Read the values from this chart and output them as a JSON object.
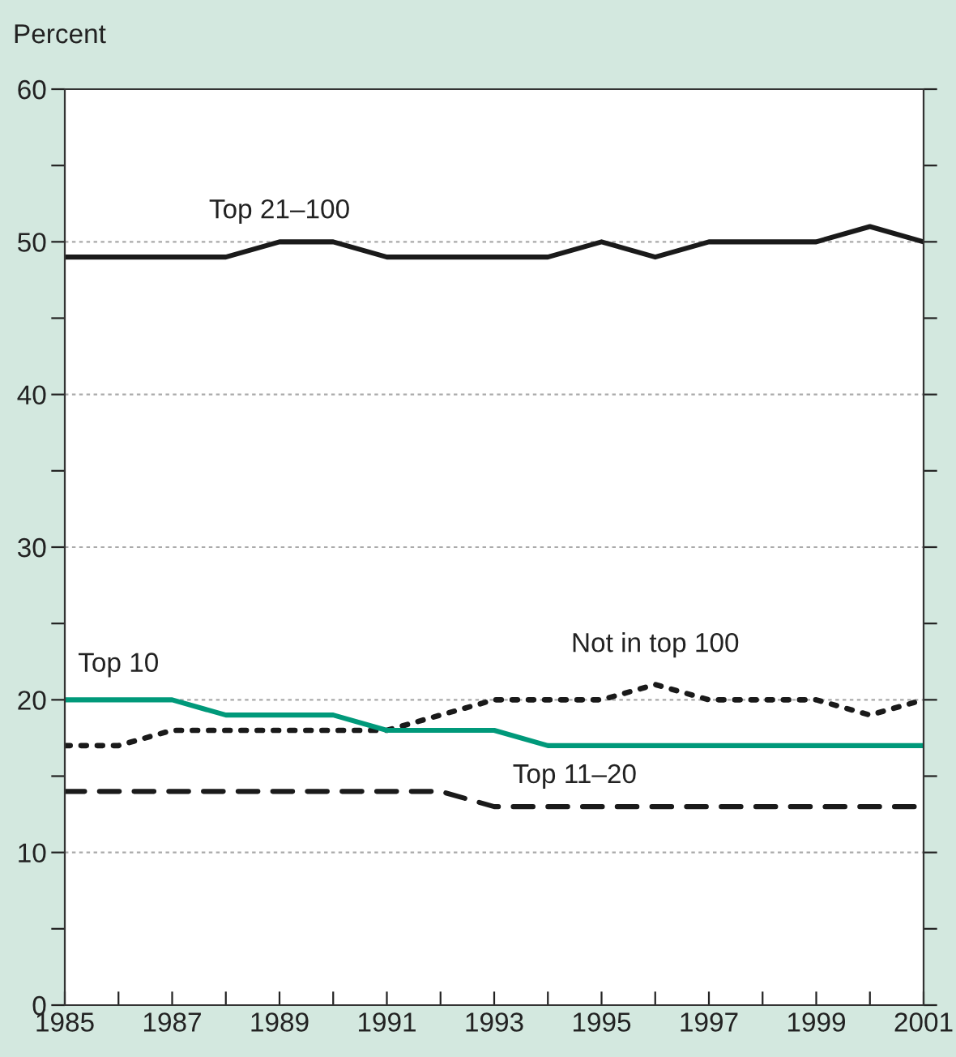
{
  "chart_data": {
    "type": "line",
    "ylabel": "Percent",
    "x": [
      1985,
      1986,
      1987,
      1988,
      1989,
      1990,
      1991,
      1992,
      1993,
      1994,
      1995,
      1996,
      1997,
      1998,
      1999,
      2000,
      2001
    ],
    "series": [
      {
        "name": "Top 21–100",
        "color": "#1a1a1a",
        "line_style": "solid",
        "values": [
          49,
          49,
          49,
          49,
          50,
          50,
          49,
          49,
          49,
          49,
          50,
          49,
          50,
          50,
          50,
          51,
          50
        ]
      },
      {
        "name": "Not in top 100",
        "color": "#1a1a1a",
        "line_style": "dotted",
        "values": [
          17,
          17,
          18,
          18,
          18,
          18,
          18,
          19,
          20,
          20,
          20,
          21,
          20,
          20,
          20,
          19,
          20
        ]
      },
      {
        "name": "Top 10",
        "color": "#00997a",
        "line_style": "solid",
        "values": [
          20,
          20,
          20,
          19,
          19,
          19,
          18,
          18,
          18,
          17,
          17,
          17,
          17,
          17,
          17,
          17,
          17
        ]
      },
      {
        "name": "Top 11–20",
        "color": "#1a1a1a",
        "line_style": "dashed",
        "values": [
          14,
          14,
          14,
          14,
          14,
          14,
          14,
          14,
          13,
          13,
          13,
          13,
          13,
          13,
          13,
          13,
          13
        ]
      }
    ],
    "xlim": [
      1985,
      2001
    ],
    "xticks": [
      1985,
      {
        "value": 1986,
        "label": null
      },
      1987,
      {
        "value": 1988,
        "label": null
      },
      1989,
      {
        "value": 1990,
        "label": null
      },
      1991,
      {
        "value": 1992,
        "label": null
      },
      1993,
      {
        "value": 1994,
        "label": null
      },
      1995,
      {
        "value": 1996,
        "label": null
      },
      1997,
      {
        "value": 1998,
        "label": null
      },
      1999,
      {
        "value": 2000,
        "label": null
      },
      2001
    ],
    "ylim": [
      0,
      60
    ],
    "yticks": [
      0,
      {
        "value": 5,
        "label": null
      },
      10,
      {
        "value": 15,
        "label": null
      },
      20,
      {
        "value": 25,
        "label": null
      },
      30,
      {
        "value": 35,
        "label": null
      },
      40,
      {
        "value": 45,
        "label": null
      },
      50,
      {
        "value": 55,
        "label": null
      },
      60
    ],
    "grid": "y",
    "legend": false,
    "marker": "none"
  }
}
